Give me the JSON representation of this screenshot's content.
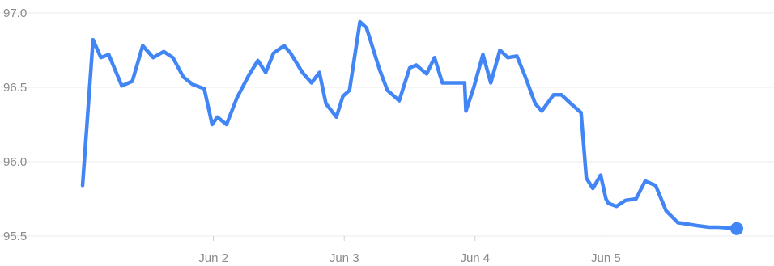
{
  "chart_data": {
    "type": "line",
    "title": "",
    "xlabel": "",
    "ylabel": "",
    "ylim": [
      95.5,
      97.0
    ],
    "yticks": [
      "95.5",
      "96.0",
      "96.5",
      "97.0"
    ],
    "xticks": [
      {
        "label": "Jun 2",
        "x": 1.0
      },
      {
        "label": "Jun 3",
        "x": 2.0
      },
      {
        "label": "Jun 4",
        "x": 3.0
      },
      {
        "label": "Jun 5",
        "x": 4.0
      }
    ],
    "xlim": [
      0.0,
      5.0
    ],
    "grid": true,
    "line_color": "#4285f4",
    "series": [
      {
        "x": [
          0.0,
          0.08,
          0.14,
          0.2,
          0.3,
          0.38,
          0.46,
          0.54,
          0.62,
          0.69,
          0.77,
          0.84,
          0.93,
          0.99,
          1.03,
          1.1,
          1.18,
          1.27,
          1.34,
          1.4,
          1.46,
          1.54,
          1.59,
          1.68,
          1.75,
          1.81,
          1.86,
          1.94,
          1.99,
          2.04,
          2.12,
          2.17,
          2.27,
          2.33,
          2.42,
          2.5,
          2.55,
          2.63,
          2.69,
          2.75,
          2.82,
          2.92,
          2.93,
          2.99,
          3.06,
          3.12,
          3.19,
          3.25,
          3.32,
          3.38,
          3.46,
          3.51,
          3.6,
          3.66,
          3.72,
          3.81,
          3.85,
          3.9,
          3.96,
          4.0,
          4.02,
          4.08,
          4.15,
          4.23,
          4.3,
          4.38,
          4.46,
          4.55,
          4.63,
          4.7,
          4.79,
          4.86,
          5.0
        ],
        "y": [
          95.84,
          96.82,
          96.7,
          96.72,
          96.51,
          96.54,
          96.78,
          96.7,
          96.74,
          96.7,
          96.57,
          96.52,
          96.49,
          96.25,
          96.3,
          96.25,
          96.43,
          96.58,
          96.68,
          96.6,
          96.73,
          96.78,
          96.73,
          96.6,
          96.53,
          96.6,
          96.39,
          96.3,
          96.44,
          96.48,
          96.94,
          96.9,
          96.62,
          96.48,
          96.41,
          96.63,
          96.65,
          96.59,
          96.7,
          96.53,
          96.53,
          96.53,
          96.34,
          96.5,
          96.72,
          96.53,
          96.75,
          96.7,
          96.71,
          96.58,
          96.39,
          96.34,
          96.45,
          96.45,
          96.4,
          96.33,
          95.89,
          95.82,
          95.91,
          95.75,
          95.72,
          95.7,
          95.74,
          95.75,
          95.87,
          95.84,
          95.67,
          95.59,
          95.58,
          95.57,
          95.56,
          95.56,
          95.55
        ]
      }
    ]
  }
}
